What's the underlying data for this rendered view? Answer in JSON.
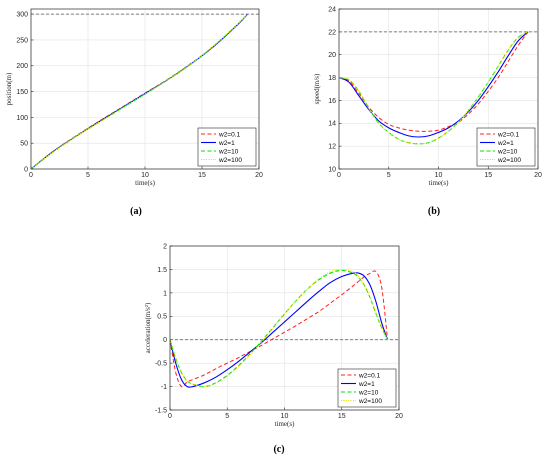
{
  "colors": {
    "w01": "#ff2020",
    "w1": "#0000ff",
    "w10": "#00e000",
    "w100": "#e6e600",
    "ref": "#555555",
    "grid": "#e2e2e2"
  },
  "chart_data": [
    {
      "id": "a",
      "type": "line",
      "panel_label": "(a)",
      "xlabel": "time(s)",
      "ylabel": "position(m)",
      "xlim": [
        0,
        20
      ],
      "ylim": [
        0,
        310
      ],
      "xticks": [
        "0",
        "5",
        "10",
        "15",
        "20"
      ],
      "yticks": [
        "0",
        "50",
        "100",
        "150",
        "200",
        "250",
        "300"
      ],
      "grid": true,
      "legend_position": "bottom-right",
      "reference_line": 300,
      "x": [
        0,
        2,
        4,
        6,
        8,
        10,
        12,
        14,
        16,
        18,
        19
      ],
      "series": [
        {
          "name": "w2=0.1",
          "values": [
            0,
            35,
            65,
            93,
            120,
            147,
            174,
            204,
            237,
            277,
            300
          ]
        },
        {
          "name": "w2=1",
          "values": [
            0,
            35,
            64,
            92,
            119,
            146,
            173,
            203,
            237,
            277,
            300
          ]
        },
        {
          "name": "w2=10",
          "values": [
            0,
            34,
            64,
            91,
            118,
            145,
            173,
            203,
            238,
            278,
            300
          ]
        },
        {
          "name": "w2=100",
          "values": [
            0,
            34,
            64,
            91,
            118,
            145,
            173,
            203,
            238,
            278,
            300
          ]
        }
      ]
    },
    {
      "id": "b",
      "type": "line",
      "panel_label": "(b)",
      "xlabel": "time(s)",
      "ylabel": "speed(m/s)",
      "xlim": [
        0,
        20
      ],
      "ylim": [
        10,
        24
      ],
      "xticks": [
        "0",
        "5",
        "10",
        "15",
        "20"
      ],
      "yticks": [
        "10",
        "12",
        "14",
        "16",
        "18",
        "20",
        "22",
        "24"
      ],
      "grid": true,
      "legend_position": "bottom-right",
      "reference_line": 22,
      "x": [
        0,
        1,
        2,
        3,
        4,
        5,
        6,
        7,
        8,
        9,
        10,
        11,
        12,
        13,
        14,
        15,
        16,
        17,
        18,
        19
      ],
      "series": [
        {
          "name": "w2=0.1",
          "values": [
            18,
            17.7,
            16.6,
            15.4,
            14.5,
            13.9,
            13.6,
            13.4,
            13.3,
            13.3,
            13.4,
            13.7,
            14.1,
            14.8,
            15.7,
            16.8,
            18.0,
            19.4,
            20.8,
            22.0
          ]
        },
        {
          "name": "w2=1",
          "values": [
            18,
            17.6,
            16.4,
            15.2,
            14.2,
            13.6,
            13.2,
            12.9,
            12.8,
            12.9,
            13.2,
            13.6,
            14.2,
            15.0,
            16.0,
            17.2,
            18.5,
            19.9,
            21.2,
            22.0
          ]
        },
        {
          "name": "w2=10",
          "values": [
            18,
            17.8,
            16.8,
            15.3,
            14.0,
            13.2,
            12.6,
            12.3,
            12.2,
            12.3,
            12.7,
            13.3,
            14.1,
            15.1,
            16.3,
            17.6,
            19.0,
            20.4,
            21.5,
            22.0
          ]
        },
        {
          "name": "w2=100",
          "values": [
            18,
            17.8,
            16.8,
            15.3,
            14.0,
            13.2,
            12.6,
            12.3,
            12.2,
            12.3,
            12.7,
            13.3,
            14.1,
            15.1,
            16.3,
            17.6,
            19.0,
            20.4,
            21.5,
            22.0
          ]
        }
      ]
    },
    {
      "id": "c",
      "type": "line",
      "panel_label": "(c)",
      "xlabel": "time(s)",
      "ylabel": "acceleration(m/s²)",
      "xlim": [
        0,
        20
      ],
      "ylim": [
        -1.5,
        2
      ],
      "xticks": [
        "0",
        "5",
        "10",
        "15",
        "20"
      ],
      "yticks": [
        "-1.5",
        "-1",
        "-0.5",
        "0",
        "0.5",
        "1",
        "1.5",
        "2"
      ],
      "grid": true,
      "legend_position": "bottom-right",
      "reference_line": 0,
      "x": [
        0,
        0.5,
        1,
        1.5,
        2,
        3,
        4,
        5,
        6,
        7,
        8,
        9,
        10,
        11,
        12,
        13,
        14,
        15,
        16,
        16.5,
        17,
        17.5,
        18,
        18.5,
        19
      ],
      "series": [
        {
          "name": "w2=0.1",
          "values": [
            0,
            -0.7,
            -1.0,
            -0.9,
            -0.85,
            -0.75,
            -0.62,
            -0.5,
            -0.38,
            -0.25,
            -0.12,
            0.02,
            0.16,
            0.3,
            0.45,
            0.6,
            0.78,
            0.96,
            1.15,
            1.25,
            1.35,
            1.42,
            1.45,
            1.1,
            0
          ]
        },
        {
          "name": "w2=1",
          "values": [
            0,
            -0.5,
            -0.85,
            -1.0,
            -1.0,
            -0.92,
            -0.8,
            -0.64,
            -0.46,
            -0.26,
            -0.06,
            0.16,
            0.38,
            0.6,
            0.82,
            1.03,
            1.22,
            1.35,
            1.42,
            1.42,
            1.35,
            1.15,
            0.8,
            0.35,
            0
          ]
        },
        {
          "name": "w2=10",
          "values": [
            0,
            -0.4,
            -0.7,
            -0.88,
            -0.95,
            -1.0,
            -0.92,
            -0.76,
            -0.55,
            -0.3,
            -0.03,
            0.26,
            0.55,
            0.83,
            1.08,
            1.28,
            1.42,
            1.48,
            1.42,
            1.32,
            1.15,
            0.88,
            0.55,
            0.25,
            0
          ]
        },
        {
          "name": "w2=100",
          "values": [
            0,
            -0.4,
            -0.7,
            -0.88,
            -0.95,
            -1.0,
            -0.93,
            -0.78,
            -0.57,
            -0.32,
            -0.05,
            0.25,
            0.55,
            0.83,
            1.08,
            1.3,
            1.45,
            1.5,
            1.45,
            1.34,
            1.16,
            0.9,
            0.57,
            0.26,
            0
          ]
        }
      ]
    }
  ]
}
